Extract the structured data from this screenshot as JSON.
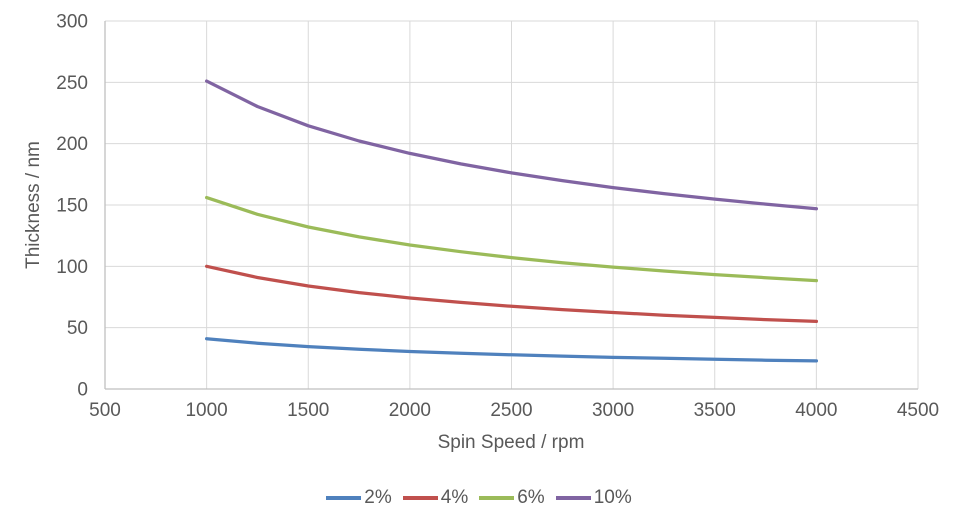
{
  "chart_data": {
    "type": "line",
    "title": "",
    "xlabel": "Spin Speed / rpm",
    "ylabel": "Thickness / nm",
    "xlim": [
      500,
      4500
    ],
    "ylim": [
      0,
      300
    ],
    "x_ticks": [
      500,
      1000,
      1500,
      2000,
      2500,
      3000,
      3500,
      4000,
      4500
    ],
    "y_ticks": [
      0,
      50,
      100,
      150,
      200,
      250,
      300
    ],
    "grid": true,
    "legend_position": "bottom-center",
    "x": [
      1000,
      1250,
      1500,
      1750,
      2000,
      2250,
      2500,
      2750,
      3000,
      3250,
      3500,
      3750,
      4000
    ],
    "series": [
      {
        "name": "2%",
        "color": "#4F81BD",
        "values": [
          41.0,
          37.3,
          34.6,
          32.4,
          30.6,
          29.2,
          27.9,
          26.8,
          25.8,
          25.0,
          24.2,
          23.5,
          22.9
        ]
      },
      {
        "name": "4%",
        "color": "#C0504D",
        "values": [
          100.0,
          90.9,
          84.0,
          78.6,
          74.2,
          70.6,
          67.4,
          64.7,
          62.4,
          60.2,
          58.4,
          56.6,
          55.1
        ]
      },
      {
        "name": "6%",
        "color": "#9BBB59",
        "values": [
          156.0,
          142.4,
          132.1,
          124.0,
          117.4,
          111.9,
          107.1,
          103.0,
          99.4,
          96.2,
          93.3,
          90.7,
          88.4
        ]
      },
      {
        "name": "10%",
        "color": "#8064A2",
        "values": [
          251.0,
          230.3,
          214.6,
          202.2,
          192.1,
          183.5,
          176.2,
          169.9,
          164.2,
          159.3,
          154.8,
          150.7,
          147.0
        ]
      }
    ]
  },
  "colors": {
    "gridline": "#D9D9D9",
    "axis_line": "#BFBFBF",
    "text": "#595959",
    "background": "#FFFFFF"
  }
}
